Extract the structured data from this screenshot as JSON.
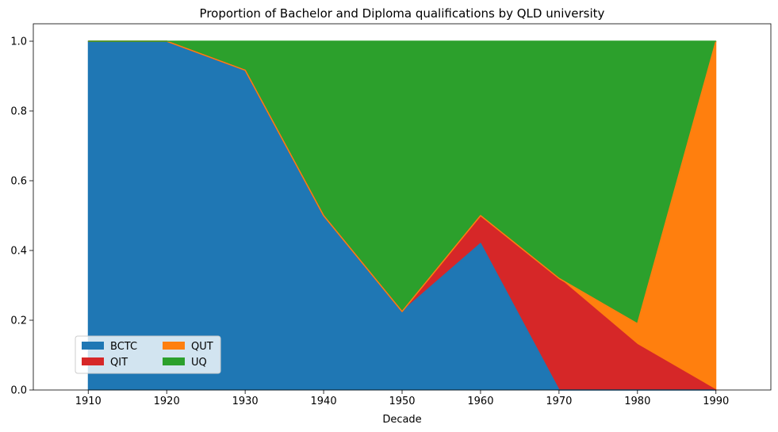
{
  "chart_data": {
    "type": "area",
    "stacked": true,
    "title": "Proportion of Bachelor and Diploma qualifications by QLD university",
    "xlabel": "Decade",
    "ylabel": "",
    "x": [
      1910,
      1920,
      1930,
      1940,
      1950,
      1960,
      1970,
      1980,
      1990
    ],
    "xlim": [
      1903,
      1997
    ],
    "ylim": [
      0,
      1.05
    ],
    "yticks": [
      0.0,
      0.2,
      0.4,
      0.6,
      0.8,
      1.0
    ],
    "ytick_labels": [
      "0.0",
      "0.2",
      "0.4",
      "0.6",
      "0.8",
      "1.0"
    ],
    "xticks": [
      1910,
      1920,
      1930,
      1940,
      1950,
      1960,
      1970,
      1980,
      1990
    ],
    "xtick_labels": [
      "1910",
      "1920",
      "1930",
      "1940",
      "1950",
      "1960",
      "1970",
      "1980",
      "1990"
    ],
    "legend_position": "lower-left",
    "legend_columns": 2,
    "grid": false,
    "series": [
      {
        "name": "BCTC",
        "color": "#1f77b4",
        "values": [
          1.0,
          1.0,
          0.917,
          0.5,
          0.225,
          0.42,
          0.0,
          0.0,
          0.0
        ]
      },
      {
        "name": "QIT",
        "color": "#d62728",
        "values": [
          0.0,
          0.0,
          0.0,
          0.0,
          0.0,
          0.08,
          0.32,
          0.13,
          0.0
        ]
      },
      {
        "name": "QUT",
        "color": "#ff7f0e",
        "values": [
          0.0,
          0.0,
          0.0,
          0.0,
          0.0,
          0.0,
          0.0,
          0.06,
          1.0
        ]
      },
      {
        "name": "UQ",
        "color": "#2ca02c",
        "values": [
          0.0,
          0.0,
          0.083,
          0.5,
          0.775,
          0.5,
          0.68,
          0.81,
          0.0
        ]
      }
    ],
    "legend_order": [
      "BCTC",
      "QIT",
      "QUT",
      "UQ"
    ]
  }
}
